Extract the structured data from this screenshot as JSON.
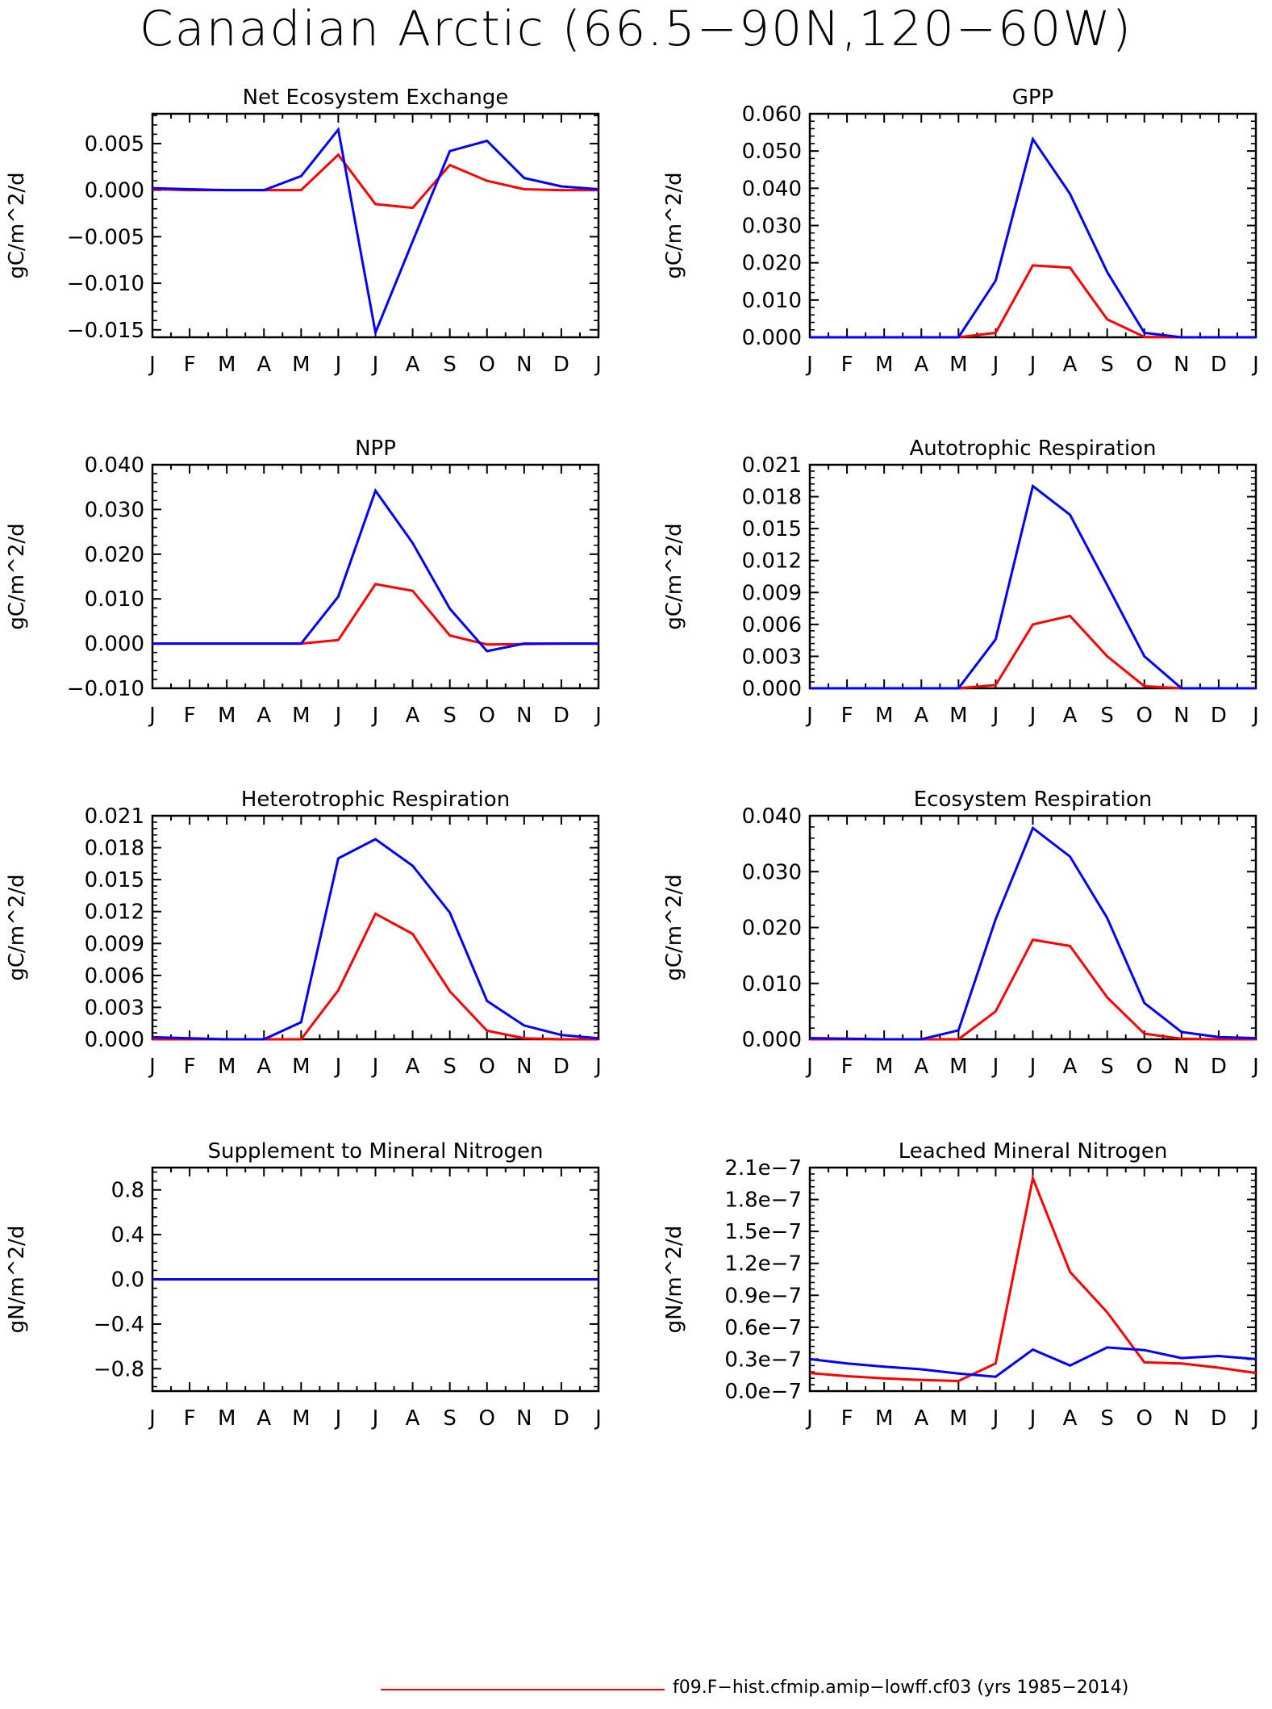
{
  "figure": {
    "title": "Canadian Arctic (66.5−90N,120−60W)"
  },
  "legend": {
    "entries": [
      {
        "label": "f09.F−hist.cfmip.amip−lowff.cf03 (yrs 1985−2014)",
        "color": "#ff0000"
      }
    ]
  },
  "colors": {
    "red_series": "#ff0000",
    "blue_series": "#0000ff"
  },
  "chart_data": [
    {
      "type": "line",
      "title": "Net Ecosystem Exchange",
      "ylabel": "gC/m^2/d",
      "categories": [
        "J",
        "F",
        "M",
        "A",
        "M",
        "J",
        "J",
        "A",
        "S",
        "O",
        "N",
        "D",
        "J"
      ],
      "ylim": [
        -0.0158,
        0.0082
      ],
      "yticks": [
        -0.015,
        -0.01,
        -0.005,
        0.0,
        0.005
      ],
      "yticklabels": [
        "−0.015",
        "−0.010",
        "−0.005",
        "0.000",
        "0.005"
      ],
      "series": [
        {
          "color": "#ff0000",
          "values": [
            0.0001,
            0.0,
            0.0,
            0.0,
            0.0,
            0.0038,
            -0.0015,
            -0.0019,
            0.0027,
            0.001,
            0.0001,
            0.0,
            0.0
          ]
        },
        {
          "color": "#0000ff",
          "values": [
            0.0002,
            0.0001,
            0.0,
            0.0,
            0.0015,
            0.0065,
            -0.0153,
            -0.0055,
            0.0042,
            0.0053,
            0.0013,
            0.0004,
            0.0001
          ]
        }
      ]
    },
    {
      "type": "line",
      "title": "GPP",
      "ylabel": "gC/m^2/d",
      "categories": [
        "J",
        "F",
        "M",
        "A",
        "M",
        "J",
        "J",
        "A",
        "S",
        "O",
        "N",
        "D",
        "J"
      ],
      "ylim": [
        0,
        0.06
      ],
      "yticks": [
        0.0,
        0.01,
        0.02,
        0.03,
        0.04,
        0.05,
        0.06
      ],
      "yticklabels": [
        "0.000",
        "0.010",
        "0.020",
        "0.030",
        "0.040",
        "0.050",
        "0.060"
      ],
      "series": [
        {
          "color": "#ff0000",
          "values": [
            0,
            0,
            0,
            0,
            0,
            0.0012,
            0.0193,
            0.0187,
            0.0048,
            0.0001,
            0,
            0,
            0
          ]
        },
        {
          "color": "#0000ff",
          "values": [
            0,
            0,
            0,
            0,
            0,
            0.0152,
            0.0532,
            0.0385,
            0.0175,
            0.0012,
            0,
            0,
            0
          ]
        }
      ]
    },
    {
      "type": "line",
      "title": "NPP",
      "ylabel": "gC/m^2/d",
      "categories": [
        "J",
        "F",
        "M",
        "A",
        "M",
        "J",
        "J",
        "A",
        "S",
        "O",
        "N",
        "D",
        "J"
      ],
      "ylim": [
        -0.01,
        0.04
      ],
      "yticks": [
        -0.01,
        0.0,
        0.01,
        0.02,
        0.03,
        0.04
      ],
      "yticklabels": [
        "−0.010",
        "0.000",
        "0.010",
        "0.020",
        "0.030",
        "0.040"
      ],
      "series": [
        {
          "color": "#ff0000",
          "values": [
            0,
            0,
            0,
            0,
            0,
            0.0008,
            0.0133,
            0.0118,
            0.0018,
            -0.0002,
            -0.0001,
            0,
            0
          ]
        },
        {
          "color": "#0000ff",
          "values": [
            0,
            0,
            0,
            0,
            0,
            0.0105,
            0.0342,
            0.0225,
            0.0078,
            -0.0017,
            0,
            0,
            0
          ]
        }
      ]
    },
    {
      "type": "line",
      "title": "Autotrophic Respiration",
      "ylabel": "gC/m^2/d",
      "categories": [
        "J",
        "F",
        "M",
        "A",
        "M",
        "J",
        "J",
        "A",
        "S",
        "O",
        "N",
        "D",
        "J"
      ],
      "ylim": [
        0,
        0.021
      ],
      "yticks": [
        0.0,
        0.003,
        0.006,
        0.009,
        0.012,
        0.015,
        0.018,
        0.021
      ],
      "yticklabels": [
        "0.000",
        "0.003",
        "0.006",
        "0.009",
        "0.012",
        "0.015",
        "0.018",
        "0.021"
      ],
      "series": [
        {
          "color": "#ff0000",
          "values": [
            0,
            0,
            0,
            0,
            0,
            0.0003,
            0.006,
            0.0068,
            0.003,
            0.0002,
            0,
            0,
            0
          ]
        },
        {
          "color": "#0000ff",
          "values": [
            0,
            0,
            0,
            0,
            0,
            0.0046,
            0.019,
            0.0163,
            0.0097,
            0.003,
            0,
            0,
            0
          ]
        }
      ]
    },
    {
      "type": "line",
      "title": "Heterotrophic Respiration",
      "ylabel": "gC/m^2/d",
      "categories": [
        "J",
        "F",
        "M",
        "A",
        "M",
        "J",
        "J",
        "A",
        "S",
        "O",
        "N",
        "D",
        "J"
      ],
      "ylim": [
        0,
        0.021
      ],
      "yticks": [
        0.0,
        0.003,
        0.006,
        0.009,
        0.012,
        0.015,
        0.018,
        0.021
      ],
      "yticklabels": [
        "0.000",
        "0.003",
        "0.006",
        "0.009",
        "0.012",
        "0.015",
        "0.018",
        "0.021"
      ],
      "series": [
        {
          "color": "#ff0000",
          "values": [
            0,
            0,
            0,
            0,
            0,
            0.0046,
            0.0118,
            0.0099,
            0.0045,
            0.0008,
            0.0001,
            0,
            0
          ]
        },
        {
          "color": "#0000ff",
          "values": [
            0.0002,
            0.0001,
            0,
            0,
            0.0016,
            0.017,
            0.0188,
            0.0163,
            0.0119,
            0.0036,
            0.0013,
            0.0004,
            0.0001
          ]
        }
      ]
    },
    {
      "type": "line",
      "title": "Ecosystem Respiration",
      "ylabel": "gC/m^2/d",
      "categories": [
        "J",
        "F",
        "M",
        "A",
        "M",
        "J",
        "J",
        "A",
        "S",
        "O",
        "N",
        "D",
        "J"
      ],
      "ylim": [
        0,
        0.04
      ],
      "yticks": [
        0.0,
        0.01,
        0.02,
        0.03,
        0.04
      ],
      "yticklabels": [
        "0.000",
        "0.010",
        "0.020",
        "0.030",
        "0.040"
      ],
      "series": [
        {
          "color": "#ff0000",
          "values": [
            0,
            0,
            0,
            0,
            0,
            0.005,
            0.0178,
            0.0167,
            0.0075,
            0.001,
            0.0001,
            0,
            0
          ]
        },
        {
          "color": "#0000ff",
          "values": [
            0.0002,
            0.0001,
            0,
            0,
            0.0016,
            0.0215,
            0.0378,
            0.0327,
            0.0217,
            0.0065,
            0.0013,
            0.0004,
            0.0002
          ]
        }
      ]
    },
    {
      "type": "line",
      "title": "Supplement to Mineral Nitrogen",
      "ylabel": "gN/m^2/d",
      "categories": [
        "J",
        "F",
        "M",
        "A",
        "M",
        "J",
        "J",
        "A",
        "S",
        "O",
        "N",
        "D",
        "J"
      ],
      "ylim": [
        -1.0,
        1.0
      ],
      "yticks": [
        -0.8,
        -0.4,
        0.0,
        0.4,
        0.8
      ],
      "yticklabels": [
        "−0.8",
        "−0.4",
        "0.0",
        "0.4",
        "0.8"
      ],
      "series": [
        {
          "color": "#ff0000",
          "values": [
            0,
            0,
            0,
            0,
            0,
            0,
            0,
            0,
            0,
            0,
            0,
            0,
            0
          ]
        },
        {
          "color": "#0000ff",
          "values": [
            0,
            0,
            0,
            0,
            0,
            0,
            0,
            0,
            0,
            0,
            0,
            0,
            0
          ]
        }
      ]
    },
    {
      "type": "line",
      "title": "Leached Mineral Nitrogen",
      "ylabel": "gN/m^2/d",
      "categories": [
        "J",
        "F",
        "M",
        "A",
        "M",
        "J",
        "J",
        "A",
        "S",
        "O",
        "N",
        "D",
        "J"
      ],
      "ylim": [
        0,
        2.1e-07
      ],
      "yticks": [
        0,
        3e-08,
        6e-08,
        9e-08,
        1.2e-07,
        1.5e-07,
        1.8e-07,
        2.1e-07
      ],
      "yticklabels": [
        "0.0e−7",
        "0.3e−7",
        "0.6e−7",
        "0.9e−7",
        "1.2e−7",
        "1.5e−7",
        "1.8e−7",
        "2.1e−7"
      ],
      "series": [
        {
          "color": "#ff0000",
          "values": [
            1.7e-08,
            1.4e-08,
            1.2e-08,
            1.05e-08,
            9.5e-09,
            2.6e-08,
            2e-07,
            1.12e-07,
            7.4e-08,
            2.7e-08,
            2.6e-08,
            2.2e-08,
            1.7e-08
          ]
        },
        {
          "color": "#0000ff",
          "values": [
            3e-08,
            2.6e-08,
            2.3e-08,
            2.05e-08,
            1.65e-08,
            1.35e-08,
            3.9e-08,
            2.4e-08,
            4.1e-08,
            3.85e-08,
            3.1e-08,
            3.3e-08,
            3e-08
          ]
        }
      ]
    }
  ]
}
